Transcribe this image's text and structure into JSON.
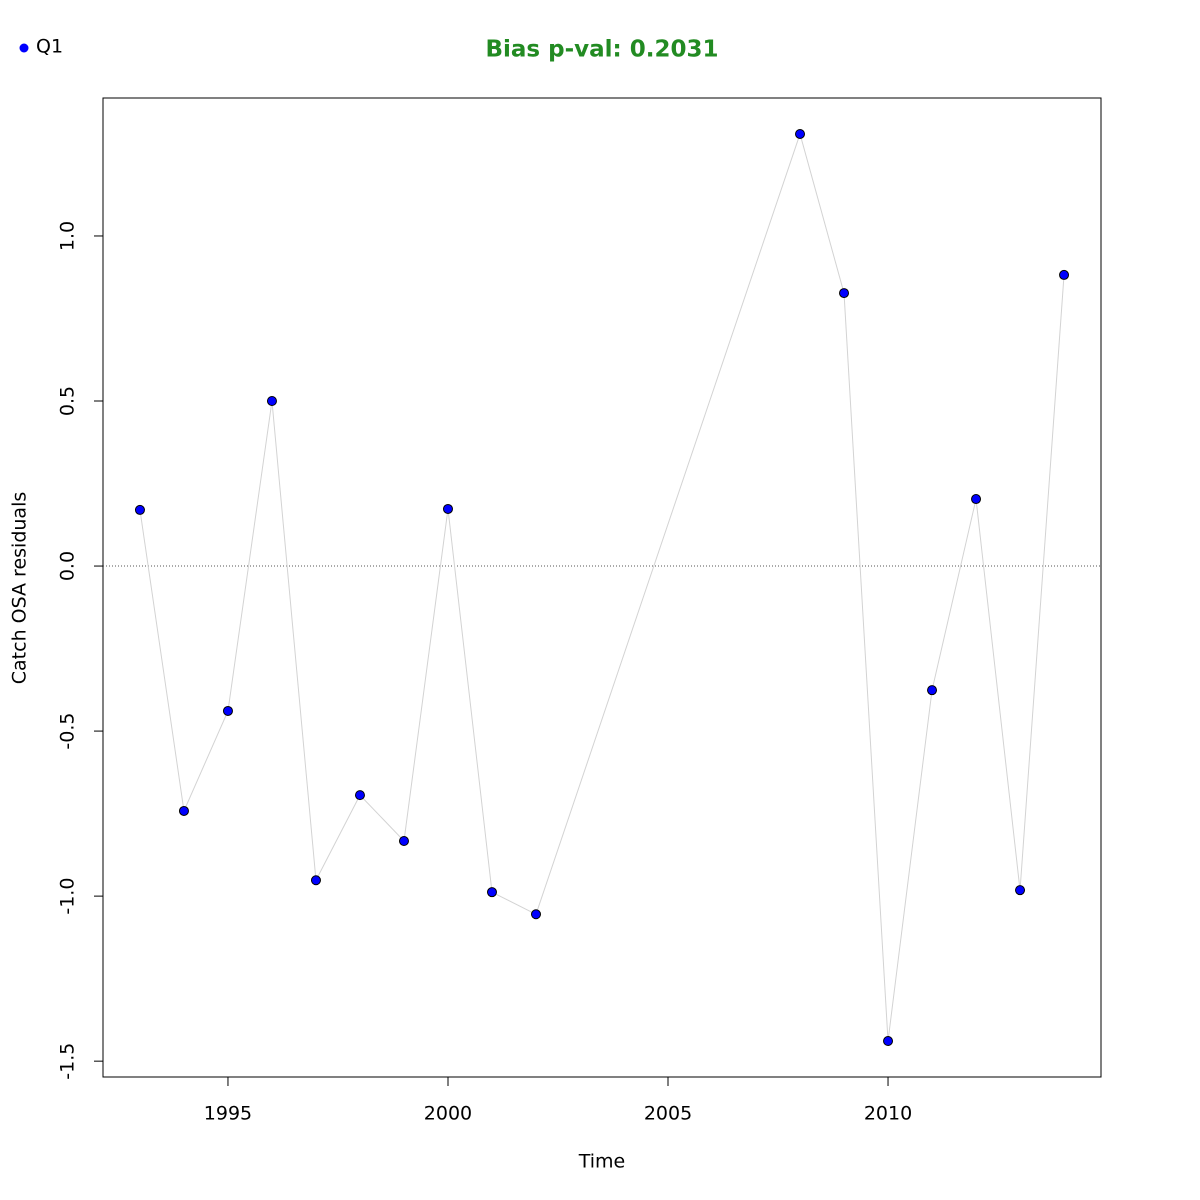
{
  "chart_data": {
    "type": "line",
    "title": "Bias p-val: 0.2031",
    "title_color": "#228b22",
    "xlabel": "Time",
    "ylabel": "Catch OSA residuals",
    "x": [
      1993,
      1994,
      1995,
      1996,
      1997,
      1998,
      1999,
      2000,
      2001,
      2002,
      2008,
      2009,
      2010,
      2011,
      2012,
      2013,
      2014
    ],
    "series": [
      {
        "name": "Q1",
        "color": "#0000ff",
        "line_color": "#d3d3d3",
        "values": [
          0.17,
          -0.742,
          -0.439,
          0.5,
          -0.952,
          -0.694,
          -0.833,
          0.173,
          -0.988,
          -1.055,
          1.309,
          0.827,
          -1.439,
          -0.376,
          0.203,
          -0.982,
          0.882
        ]
      }
    ],
    "xlim": [
      1992.16,
      2014.84
    ],
    "ylim": [
      -1.548,
      1.418
    ],
    "xticks": [
      1995,
      2000,
      2005,
      2010
    ],
    "yticks": [
      -1.5,
      -1.0,
      -0.5,
      0.0,
      0.5,
      1.0
    ],
    "reference_line": 0,
    "legend_position": "top-left"
  }
}
